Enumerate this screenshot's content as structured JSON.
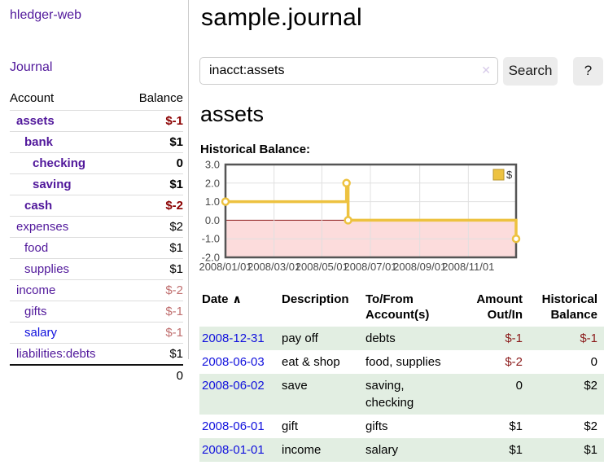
{
  "colors": {
    "link_purple": "#51189B",
    "link_blue": "#1111DD",
    "negative_strong": "#8B0000",
    "negative_pale": "#C06F6F",
    "row_stripe_green": "#E2EEE2"
  },
  "sidebar": {
    "app_title": "hledger-web",
    "nav": [
      {
        "label": "Journal"
      }
    ],
    "accounts_table": {
      "account_header": "Account",
      "balance_header": "Balance",
      "rows": [
        {
          "name": "assets",
          "indent": 1,
          "balance": "$-1",
          "bold": true,
          "neg": "strong"
        },
        {
          "name": "bank",
          "indent": 2,
          "balance": "$1",
          "bold": true
        },
        {
          "name": "checking",
          "indent": 3,
          "balance": "0",
          "bold": true
        },
        {
          "name": "saving",
          "indent": 3,
          "balance": "$1",
          "bold": true
        },
        {
          "name": "cash",
          "indent": 2,
          "balance": "$-2",
          "bold": true,
          "neg": "strong"
        },
        {
          "name": "expenses",
          "indent": 1,
          "balance": "$2"
        },
        {
          "name": "food",
          "indent": 2,
          "balance": "$1"
        },
        {
          "name": "supplies",
          "indent": 2,
          "balance": "$1"
        },
        {
          "name": "income",
          "indent": 1,
          "balance": "$-2",
          "neg": "pale"
        },
        {
          "name": "gifts",
          "indent": 2,
          "balance": "$-1",
          "neg": "pale"
        },
        {
          "name": "salary",
          "indent": 2,
          "balance": "$-1",
          "neg": "pale",
          "visited": false
        },
        {
          "name": "liabilities:debts",
          "indent": 1,
          "balance": "$1"
        }
      ],
      "total": "0"
    }
  },
  "header": {
    "title": "sample.journal"
  },
  "search": {
    "query": "inacct:assets",
    "clear_icon": "✕",
    "search_button": "Search",
    "help_button": "?"
  },
  "account_page": {
    "heading": "assets",
    "chart_label": "Historical Balance:"
  },
  "chart_data": {
    "type": "line",
    "title": "Historical Balance:",
    "legend": [
      {
        "label": "$",
        "color": "#EDC240"
      }
    ],
    "legend_position": "top-right",
    "grid": true,
    "ylim": [
      -2,
      3
    ],
    "x_range_days": [
      0,
      365
    ],
    "y_ticks": [
      {
        "label": "3.0",
        "value": 3
      },
      {
        "label": "2.0",
        "value": 2
      },
      {
        "label": "1.0",
        "value": 1
      },
      {
        "label": "0.0",
        "value": 0
      },
      {
        "label": "-1.0",
        "value": -1
      },
      {
        "label": "-2.0",
        "value": -2
      }
    ],
    "x_ticks": [
      {
        "label": "2008/01/01",
        "day": 0
      },
      {
        "label": "2008/03/01",
        "day": 61
      },
      {
        "label": "2008/05/01",
        "day": 121
      },
      {
        "label": "2008/07/01",
        "day": 182
      },
      {
        "label": "2008/09/01",
        "day": 244
      },
      {
        "label": "2008/11/01",
        "day": 305
      }
    ],
    "series": [
      {
        "name": "$",
        "color": "#EDC240",
        "step_points": [
          {
            "date": "2008-01-01",
            "day": 0,
            "balance": 1
          },
          {
            "date": "2008-06-01",
            "day": 152,
            "balance": 2
          },
          {
            "date": "2008-06-03",
            "day": 154,
            "balance": 0
          },
          {
            "date": "2008-12-31",
            "day": 365,
            "balance": -1
          }
        ]
      }
    ],
    "negative_region_color": "#FCDCDC",
    "zero_line_color": "#8B1A1A",
    "gridline_color": "#E0E0E0",
    "border_color": "#555555"
  },
  "register_table": {
    "sort_icon": "∧",
    "headers": [
      "Date",
      "Description",
      "To/From Account(s)",
      "Amount Out/In",
      "Historical Balance"
    ],
    "rows": [
      {
        "date": "2008-12-31",
        "description": "pay off",
        "accounts": "debts",
        "amount": "$-1",
        "balance": "$-1",
        "amount_negative": true,
        "balance_negative": true
      },
      {
        "date": "2008-06-03",
        "description": "eat & shop",
        "accounts": "food, supplies",
        "amount": "$-2",
        "balance": "0",
        "amount_negative": true,
        "balance_negative": false
      },
      {
        "date": "2008-06-02",
        "description": "save",
        "accounts": "saving, checking",
        "amount": "0",
        "balance": "$2",
        "amount_negative": false,
        "balance_negative": false
      },
      {
        "date": "2008-06-01",
        "description": "gift",
        "accounts": "gifts",
        "amount": "$1",
        "balance": "$2",
        "amount_negative": false,
        "balance_negative": false
      },
      {
        "date": "2008-01-01",
        "description": "income",
        "accounts": "salary",
        "amount": "$1",
        "balance": "$1",
        "amount_negative": false,
        "balance_negative": false
      }
    ]
  }
}
